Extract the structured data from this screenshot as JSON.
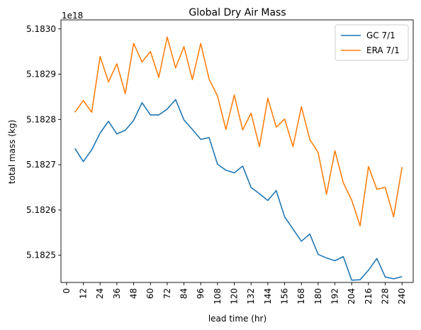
{
  "chart_data": {
    "type": "line",
    "title": "Global Dry Air Mass",
    "xlabel": "lead time (hr)",
    "ylabel": "total mass (kg)",
    "y_offset_label": "1e18",
    "xlim": [
      -4,
      248
    ],
    "ylim": [
      5.18244,
      5.18302
    ],
    "x_ticks": [
      0,
      12,
      24,
      36,
      48,
      60,
      72,
      84,
      96,
      108,
      120,
      132,
      144,
      156,
      168,
      180,
      192,
      204,
      216,
      228,
      240
    ],
    "x_tick_labels": [
      "0",
      "12",
      "24",
      "36",
      "48",
      "60",
      "72",
      "84",
      "96",
      "108",
      "120",
      "132",
      "144",
      "156",
      "168",
      "180",
      "192",
      "204",
      "216",
      "228",
      "240"
    ],
    "y_ticks": [
      5.1825,
      5.1826,
      5.1827,
      5.1828,
      5.1829,
      5.183
    ],
    "y_tick_labels": [
      "5.1825",
      "5.1826",
      "5.1827",
      "5.1828",
      "5.1829",
      "5.1830"
    ],
    "grid": false,
    "legend_position": "top-right",
    "x": [
      6,
      12,
      18,
      24,
      30,
      36,
      42,
      48,
      54,
      60,
      66,
      72,
      78,
      84,
      90,
      96,
      102,
      108,
      114,
      120,
      126,
      132,
      138,
      144,
      150,
      156,
      162,
      168,
      174,
      180,
      186,
      192,
      198,
      204,
      210,
      216,
      222,
      228,
      234,
      240
    ],
    "series": [
      {
        "name": "GC 7/1",
        "color": "#1f77b4",
        "values": [
          5.182736,
          5.182707,
          5.182733,
          5.18277,
          5.182796,
          5.182768,
          5.182776,
          5.182798,
          5.182837,
          5.18281,
          5.18281,
          5.182823,
          5.182844,
          5.182799,
          5.182778,
          5.182756,
          5.18276,
          5.182701,
          5.182688,
          5.182682,
          5.182697,
          5.18265,
          5.182636,
          5.182621,
          5.182643,
          5.182585,
          5.182558,
          5.182531,
          5.182547,
          5.182502,
          5.182494,
          5.182488,
          5.182497,
          5.182445,
          5.182446,
          5.182467,
          5.182493,
          5.182452,
          5.182448,
          5.182453
        ]
      },
      {
        "name": "ERA 7/1",
        "color": "#ff7f0e",
        "values": [
          5.182816,
          5.182842,
          5.182816,
          5.182939,
          5.182883,
          5.182923,
          5.182857,
          5.182968,
          5.182927,
          5.18295,
          5.182893,
          5.182982,
          5.182914,
          5.182961,
          5.182888,
          5.182968,
          5.182889,
          5.182852,
          5.182778,
          5.182854,
          5.182777,
          5.182814,
          5.18274,
          5.182847,
          5.182783,
          5.182801,
          5.18274,
          5.182828,
          5.182756,
          5.182727,
          5.182635,
          5.182731,
          5.18266,
          5.182622,
          5.182565,
          5.182696,
          5.182646,
          5.18265,
          5.182585,
          5.182695
        ]
      }
    ]
  }
}
